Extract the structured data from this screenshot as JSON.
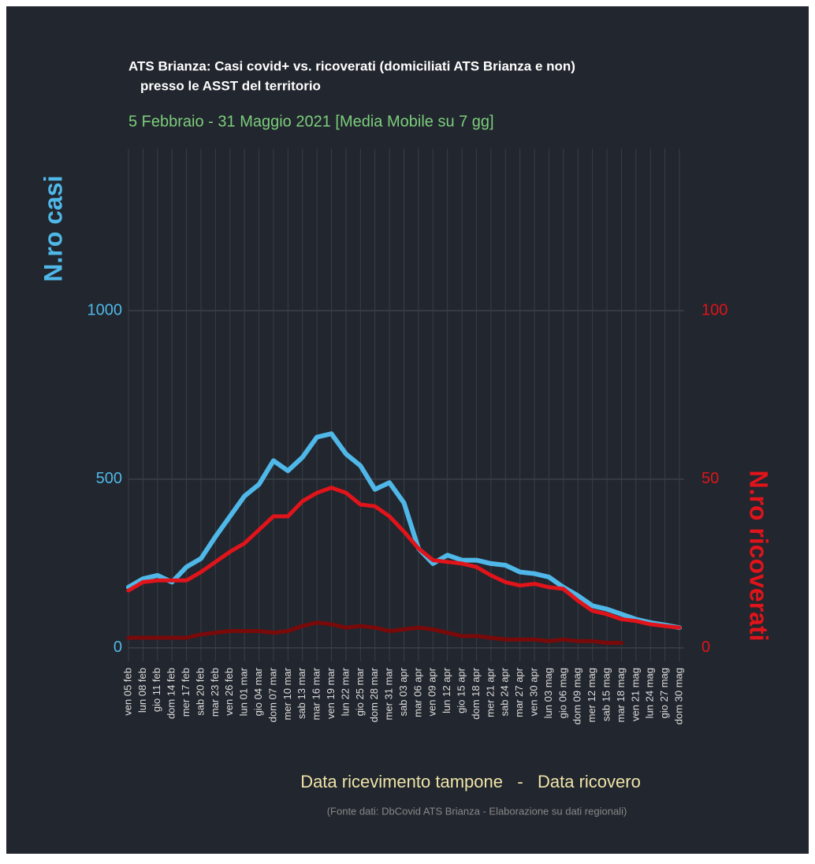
{
  "chart_data": {
    "type": "line",
    "title": [
      "ATS Brianza: Casi covid+ vs. ricoverati (domiciliati ATS Brianza e non)",
      "presso le ASST del territorio"
    ],
    "subtitle": "5 Febbraio - 31 Maggio 2021 [Media Mobile su 7 gg]",
    "ylabel": "N.ro casi",
    "y2label": "N.ro ricoverati",
    "xlabel": "Data ricevimento tampone   -   Data ricovero",
    "source": "(Fonte dati: DbCovid ATS Brianza - Elaborazione su dati regionali)",
    "categories": [
      "ven 05 feb",
      "lun 08 feb",
      "gio 11 feb",
      "dom 14 feb",
      "mer 17 feb",
      "sab 20 feb",
      "mar 23 feb",
      "ven 26 feb",
      "lun 01 mar",
      "gio 04 mar",
      "dom 07 mar",
      "mer 10 mar",
      "sab 13 mar",
      "mar 16 mar",
      "ven 19 mar",
      "lun 22 mar",
      "gio 25 mar",
      "dom 28 mar",
      "mer 31 mar",
      "sab 03 apr",
      "mar 06 apr",
      "ven 09 apr",
      "lun 12 apr",
      "gio 15 apr",
      "dom 18 apr",
      "mer 21 apr",
      "sab 24 apr",
      "mar 27 apr",
      "ven 30 apr",
      "lun 03 mag",
      "gio 06 mag",
      "dom 09 mag",
      "mer 12 mag",
      "sab 15 mag",
      "mar 18 mag",
      "ven 21 mag",
      "lun 24 mag",
      "gio 27 mag",
      "dom 30 mag"
    ],
    "series": [
      {
        "color": "#4fb8e8",
        "axis": "y",
        "values": [
          180,
          205,
          215,
          195,
          240,
          265,
          330,
          390,
          450,
          485,
          555,
          525,
          565,
          625,
          635,
          575,
          540,
          470,
          490,
          430,
          295,
          250,
          275,
          260,
          260,
          250,
          245,
          225,
          220,
          210,
          180,
          155,
          125,
          115,
          100,
          85,
          75,
          68,
          60
        ]
      },
      {
        "color": "#e0141a",
        "axis": "y2",
        "values": [
          17,
          19.5,
          20,
          20,
          20,
          22.5,
          25.5,
          28.5,
          31,
          35,
          39,
          39,
          43.5,
          46,
          47.5,
          46,
          42.5,
          42,
          39,
          34.5,
          29.5,
          26,
          25.5,
          25,
          24,
          21.5,
          19.5,
          18.5,
          19,
          18,
          17.5,
          14,
          11,
          10,
          8.5,
          8,
          7,
          6.5,
          6
        ]
      },
      {
        "color": "#7a0a0a",
        "axis": "y2",
        "values": [
          3,
          3,
          3,
          3,
          3,
          4,
          4.5,
          5,
          5,
          5,
          4.5,
          5,
          6.5,
          7.5,
          7,
          6,
          6.5,
          6,
          5,
          5.5,
          6,
          5.5,
          4.5,
          3.5,
          3.5,
          3,
          2.5,
          2.5,
          2.5,
          2,
          2.5,
          2,
          2,
          1.5,
          1.5,
          null,
          null,
          null,
          null
        ]
      }
    ],
    "ylim": [
      -40,
      1480
    ],
    "yticks": [
      0,
      500,
      1000
    ],
    "y2lim": [
      -4,
      148
    ],
    "y2ticks": [
      0,
      50,
      100
    ],
    "grid": true
  }
}
